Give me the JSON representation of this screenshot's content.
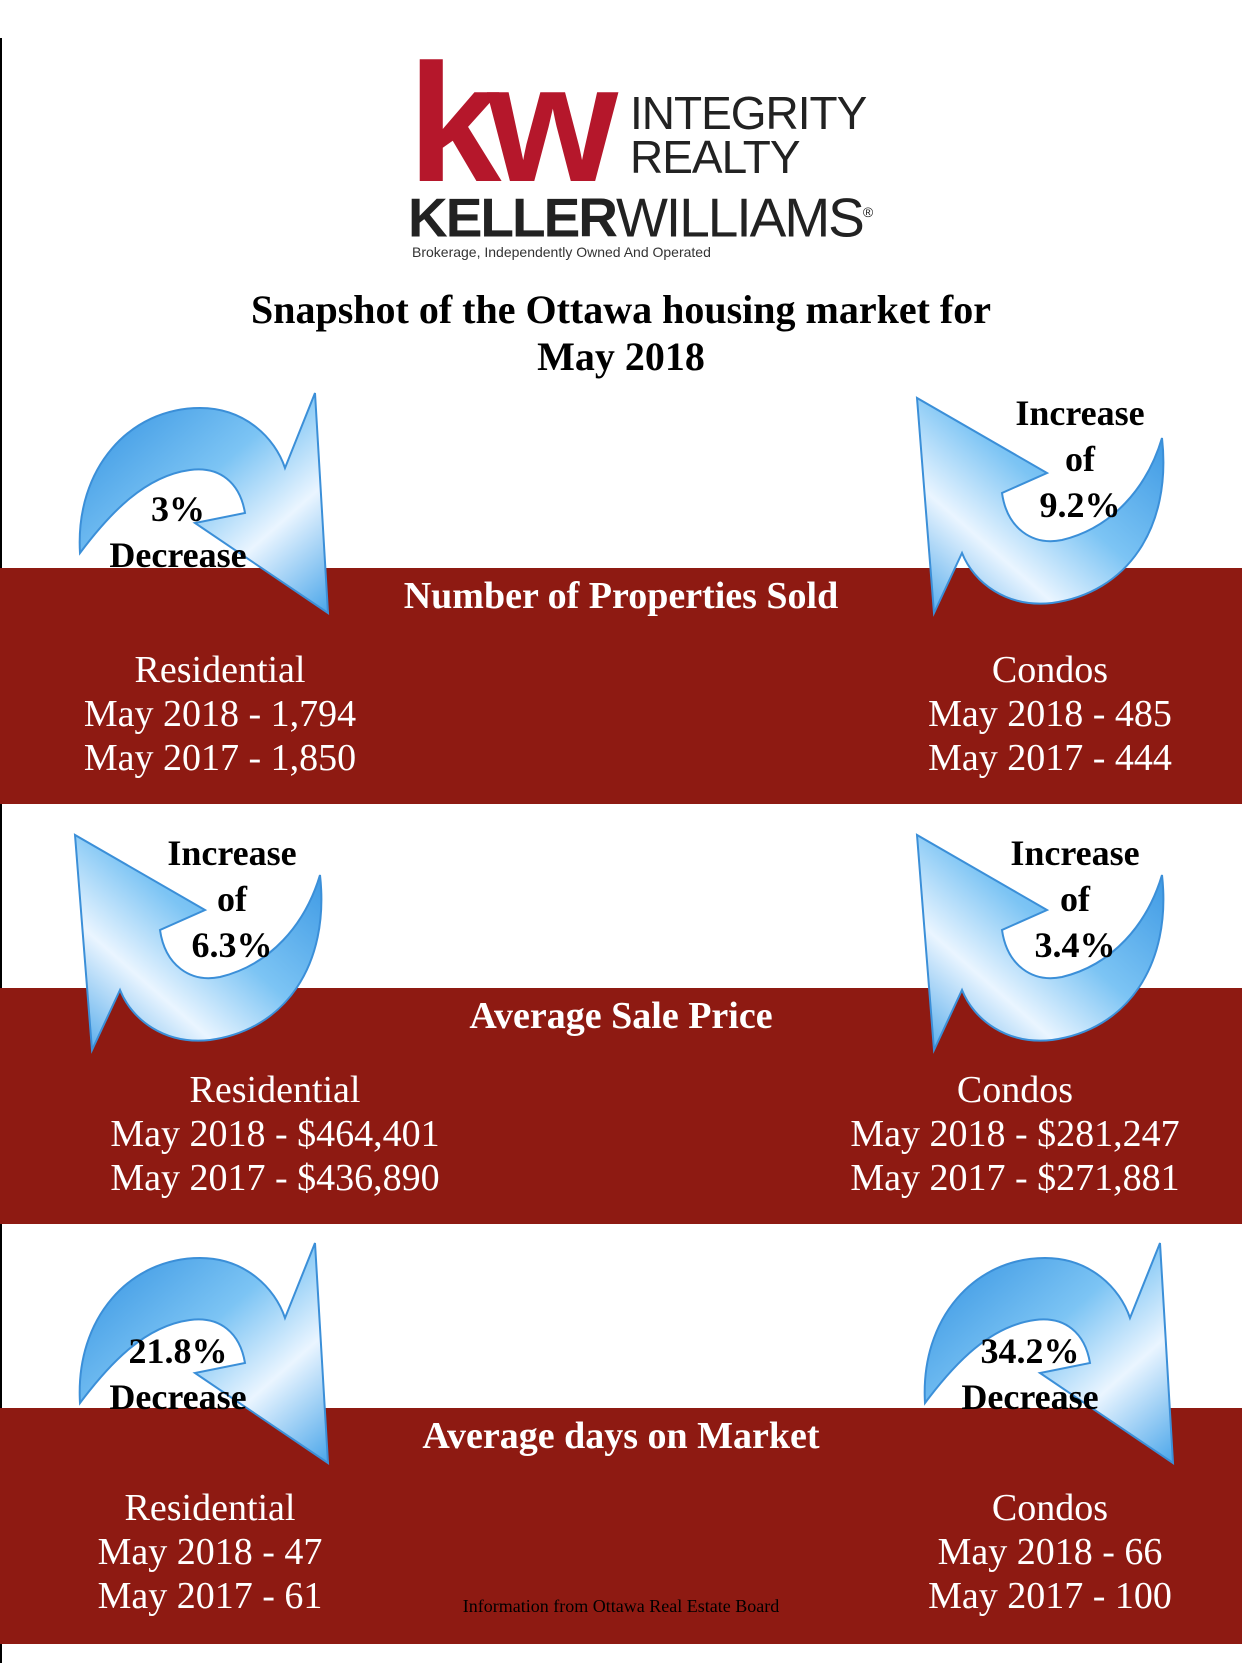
{
  "logo": {
    "mark": "kw",
    "tagline_line1": "INTEGRITY",
    "tagline_line2": "REALTY",
    "brand_bold": "KELLER",
    "brand_regular": "WILLIAMS",
    "registered": "®",
    "subtitle": "Brokerage, Independently Owned And Operated",
    "color": "#b5172b"
  },
  "title": {
    "line1": "Snapshot of the Ottawa housing market for",
    "line2": "May 2018"
  },
  "colors": {
    "band": "#8e1a12",
    "arrow": "#5aaee8",
    "arrow_light": "#eaf5ff"
  },
  "sections": [
    {
      "title": "Number of Properties Sold",
      "left": {
        "change_line1": "3%",
        "change_line2": "Decrease",
        "direction": "down",
        "label": "Residential",
        "line1": "May 2018 - 1,794",
        "line2": "May 2017 - 1,850"
      },
      "right": {
        "change_line1": "Increase",
        "change_line2": "of",
        "change_line3": "9.2%",
        "direction": "up",
        "label": "Condos",
        "line1": "May 2018 - 485",
        "line2": "May 2017 - 444"
      }
    },
    {
      "title": "Average Sale Price",
      "left": {
        "change_line1": "Increase",
        "change_line2": "of",
        "change_line3": "6.3%",
        "direction": "up",
        "label": "Residential",
        "line1": "May 2018 - $464,401",
        "line2": "May 2017 - $436,890"
      },
      "right": {
        "change_line1": "Increase",
        "change_line2": "of",
        "change_line3": "3.4%",
        "direction": "up",
        "label": "Condos",
        "line1": "May 2018 - $281,247",
        "line2": "May 2017 - $271,881"
      }
    },
    {
      "title": "Average days on Market",
      "left": {
        "change_line1": "21.8%",
        "change_line2": "Decrease",
        "direction": "down",
        "label": "Residential",
        "line1": "May 2018 - 47",
        "line2": "May 2017 - 61"
      },
      "right": {
        "change_line1": "34.2%",
        "change_line2": "Decrease",
        "direction": "down",
        "label": "Condos",
        "line1": "May 2018 - 66",
        "line2": "May 2017 - 100"
      }
    }
  ],
  "source": "Information from Ottawa Real Estate Board"
}
